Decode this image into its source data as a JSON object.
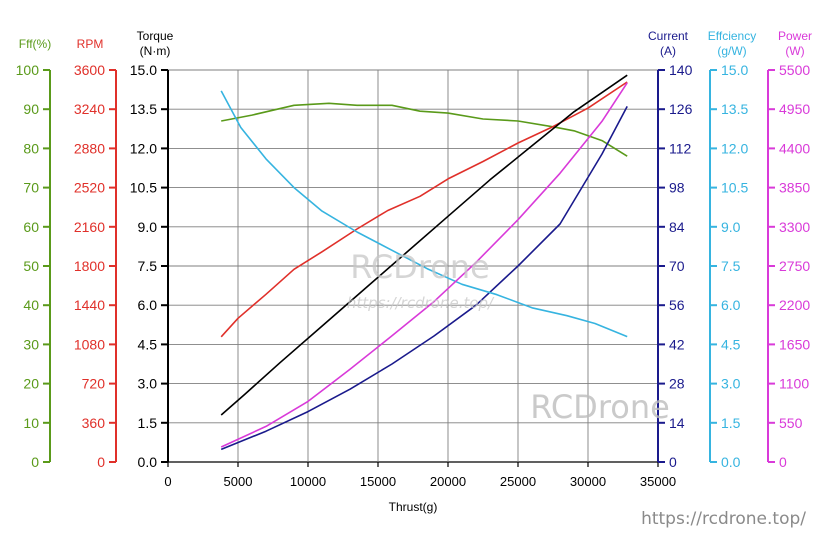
{
  "chart_data": {
    "type": "line",
    "xlabel": "Thrust(g)",
    "xlim": [
      0,
      35000
    ],
    "x_ticks": [
      "0",
      "5000",
      "10000",
      "15000",
      "20000",
      "25000",
      "30000",
      "35000"
    ],
    "axes": [
      {
        "key": "fff",
        "title_lines": [
          "Fff(%)"
        ],
        "color": "#5a9a1a",
        "ylim": [
          0,
          100
        ],
        "ticks": [
          "0",
          "10",
          "20",
          "30",
          "40",
          "50",
          "60",
          "70",
          "80",
          "90",
          "100"
        ]
      },
      {
        "key": "rpm",
        "title_lines": [
          "RPM"
        ],
        "color": "#e0302a",
        "ylim": [
          0,
          3600
        ],
        "ticks": [
          "0",
          "360",
          "720",
          "1080",
          "1440",
          "1800",
          "2160",
          "2520",
          "2880",
          "3240",
          "3600"
        ]
      },
      {
        "key": "torque",
        "title_lines": [
          "Torque",
          "(N·m)"
        ],
        "color": "#000000",
        "ylim": [
          0,
          15
        ],
        "ticks": [
          "0.0",
          "1.5",
          "3.0",
          "4.5",
          "6.0",
          "7.5",
          "9.0",
          "10.5",
          "12.0",
          "13.5",
          "15.0"
        ]
      },
      {
        "key": "current",
        "title_lines": [
          "Current",
          "(A)"
        ],
        "color": "#1a1a8c",
        "ylim": [
          0,
          140
        ],
        "ticks": [
          "0",
          "14",
          "28",
          "42",
          "56",
          "70",
          "84",
          "98",
          "112",
          "126",
          "140"
        ]
      },
      {
        "key": "efficiency",
        "title_lines": [
          "Effciency",
          "(g/W)"
        ],
        "color": "#36b4e0",
        "ylim": [
          0,
          15
        ],
        "ticks": [
          "0.0",
          "1.5",
          "3.0",
          "4.5",
          "6.0",
          "7.5",
          "9.0",
          "10.5",
          "12.0",
          "13.5",
          "15.0"
        ]
      },
      {
        "key": "power",
        "title_lines": [
          "Power",
          "(W)"
        ],
        "color": "#d93ad9",
        "ylim": [
          0,
          5500
        ],
        "ticks": [
          "0",
          "550",
          "1100",
          "1650",
          "2200",
          "2750",
          "3300",
          "3850",
          "4400",
          "4950",
          "5500"
        ]
      }
    ],
    "series": [
      {
        "axis": "fff",
        "color": "#5a9a1a",
        "x": [
          3800,
          6000,
          9000,
          11500,
          13500,
          16000,
          18000,
          20000,
          22500,
          25000,
          27500,
          29000,
          31000,
          32800
        ],
        "y": [
          87,
          88.5,
          91,
          91.5,
          91,
          91,
          89.5,
          89,
          87.5,
          87,
          85.5,
          84.5,
          82,
          78
        ]
      },
      {
        "axis": "rpm",
        "color": "#e0302a",
        "x": [
          3800,
          5000,
          7000,
          9000,
          11000,
          13500,
          15700,
          18000,
          20000,
          22500,
          25000,
          27500,
          30000,
          32800
        ],
        "y": [
          1150,
          1320,
          1540,
          1770,
          1930,
          2140,
          2310,
          2440,
          2600,
          2760,
          2930,
          3080,
          3250,
          3490
        ]
      },
      {
        "axis": "torque",
        "color": "#000000",
        "x": [
          3800,
          5500,
          8000,
          11000,
          14000,
          17000,
          20000,
          23000,
          26000,
          29000,
          32800
        ],
        "y": [
          1.8,
          2.6,
          3.8,
          5.2,
          6.6,
          8.0,
          9.4,
          10.8,
          12.1,
          13.4,
          14.8
        ]
      },
      {
        "axis": "current",
        "color": "#1a1a8c",
        "x": [
          3800,
          7000,
          10000,
          13000,
          16000,
          19000,
          22000,
          25000,
          28000,
          31000,
          32800
        ],
        "y": [
          4.5,
          11,
          18,
          26,
          35,
          45,
          56,
          70,
          85,
          110,
          127
        ]
      },
      {
        "axis": "efficiency",
        "color": "#36b4e0",
        "x": [
          3800,
          5200,
          7000,
          9000,
          11000,
          13500,
          16000,
          18500,
          21000,
          23500,
          26000,
          28500,
          30500,
          32800
        ],
        "y": [
          14.2,
          12.8,
          11.6,
          10.5,
          9.6,
          8.8,
          8.1,
          7.4,
          6.8,
          6.4,
          5.9,
          5.6,
          5.3,
          4.8
        ]
      },
      {
        "axis": "power",
        "color": "#d93ad9",
        "x": [
          3800,
          7000,
          10000,
          13000,
          16000,
          19000,
          22000,
          25000,
          28000,
          31000,
          32800
        ],
        "y": [
          210,
          500,
          850,
          1300,
          1770,
          2250,
          2800,
          3400,
          4050,
          4780,
          5320
        ]
      }
    ]
  },
  "watermark": {
    "center_text": "RCDrone",
    "center_url": "https://rcdrone.top/",
    "corner_text": "RCDrone",
    "footer_url": "https://rcdrone.top/"
  }
}
